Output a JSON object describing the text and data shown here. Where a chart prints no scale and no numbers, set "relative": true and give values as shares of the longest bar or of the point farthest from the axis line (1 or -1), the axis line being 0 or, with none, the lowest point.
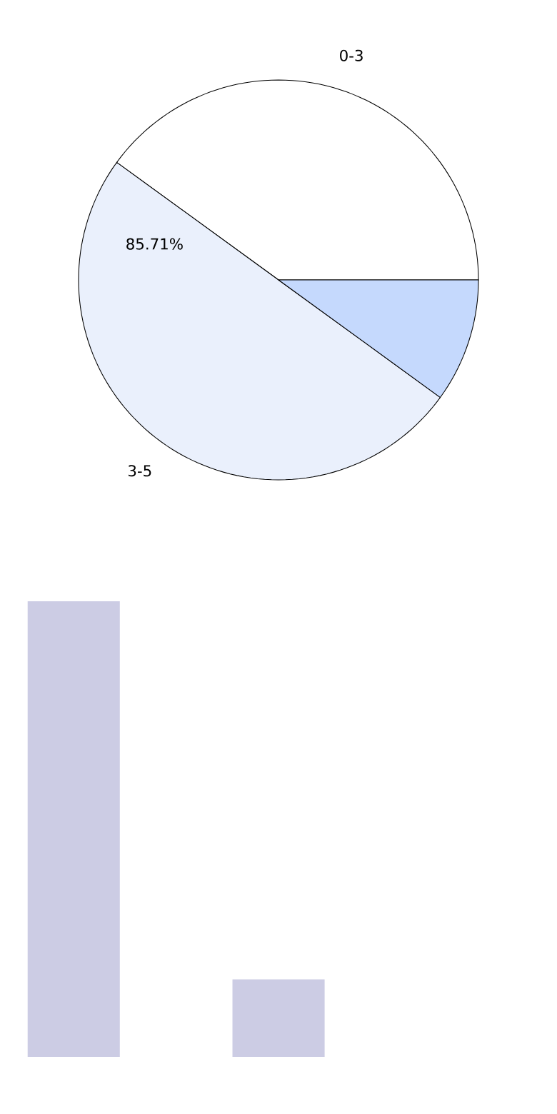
{
  "chart_data": [
    {
      "type": "pie",
      "categories": [
        "0-3",
        "3-5",
        null
      ],
      "values": [
        40,
        50,
        10
      ],
      "colors": [
        "#ffffff",
        "#eaf0fc",
        "#c5d9fd"
      ],
      "annotations": [
        "85.71%"
      ]
    },
    {
      "type": "bar",
      "relative": true,
      "categories": [
        null,
        null
      ],
      "values": [
        1,
        0.17
      ],
      "color": "#cccce4"
    }
  ]
}
